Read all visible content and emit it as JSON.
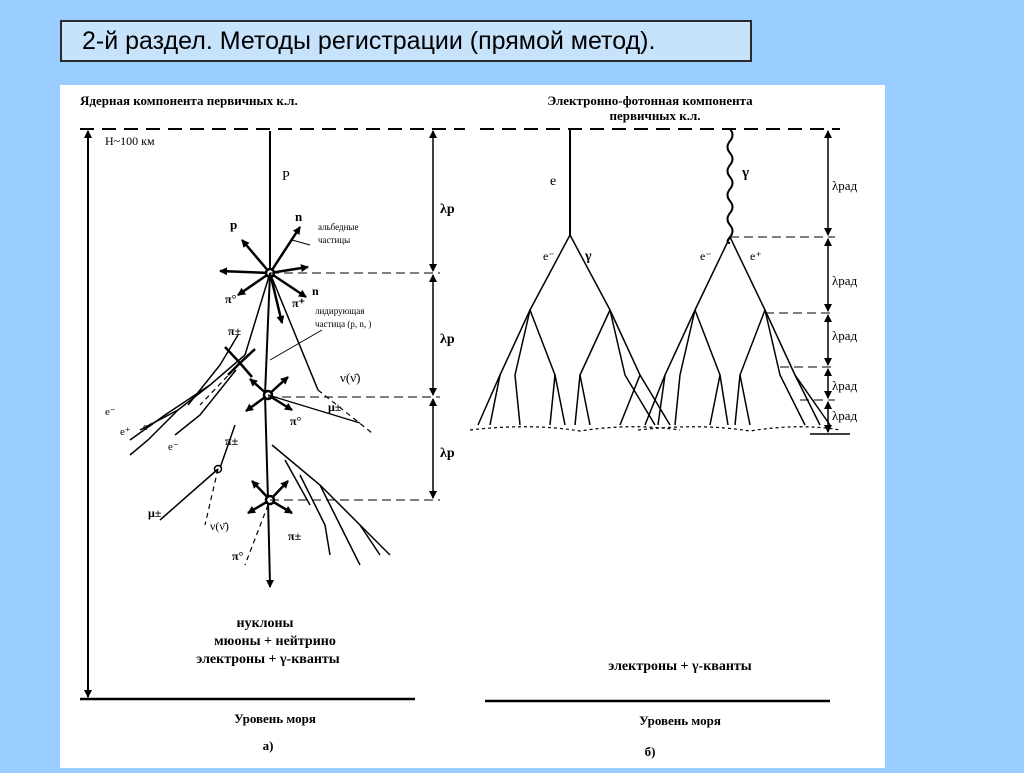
{
  "slide": {
    "title": "2-й раздел. Методы регистрации (прямой метод)."
  },
  "panel_a": {
    "heading": "Ядерная компонента первичных к.л.",
    "altitude": "H~100 км",
    "primary": "P",
    "albedo_label_1": "альбедные",
    "albedo_label_2": "частицы",
    "leading_label_1": "лидирующая",
    "leading_label_2": "частица (p, n,   )",
    "interaction_length": "λp",
    "neutrino": "ν(ν̄)",
    "products": [
      "нуклоны",
      "мюоны  +  нейтрино",
      "электроны  +  γ-кванты"
    ],
    "sea_level": "Уровень моря",
    "caption": "а)"
  },
  "panel_b": {
    "heading_1": "Электронно-фотонная  компонента",
    "heading_2": "первичных к.л.",
    "radiation_length": "λрад",
    "products": "электроны  +  γ-кванты",
    "sea_level": "Уровень моря",
    "caption": "б)"
  }
}
